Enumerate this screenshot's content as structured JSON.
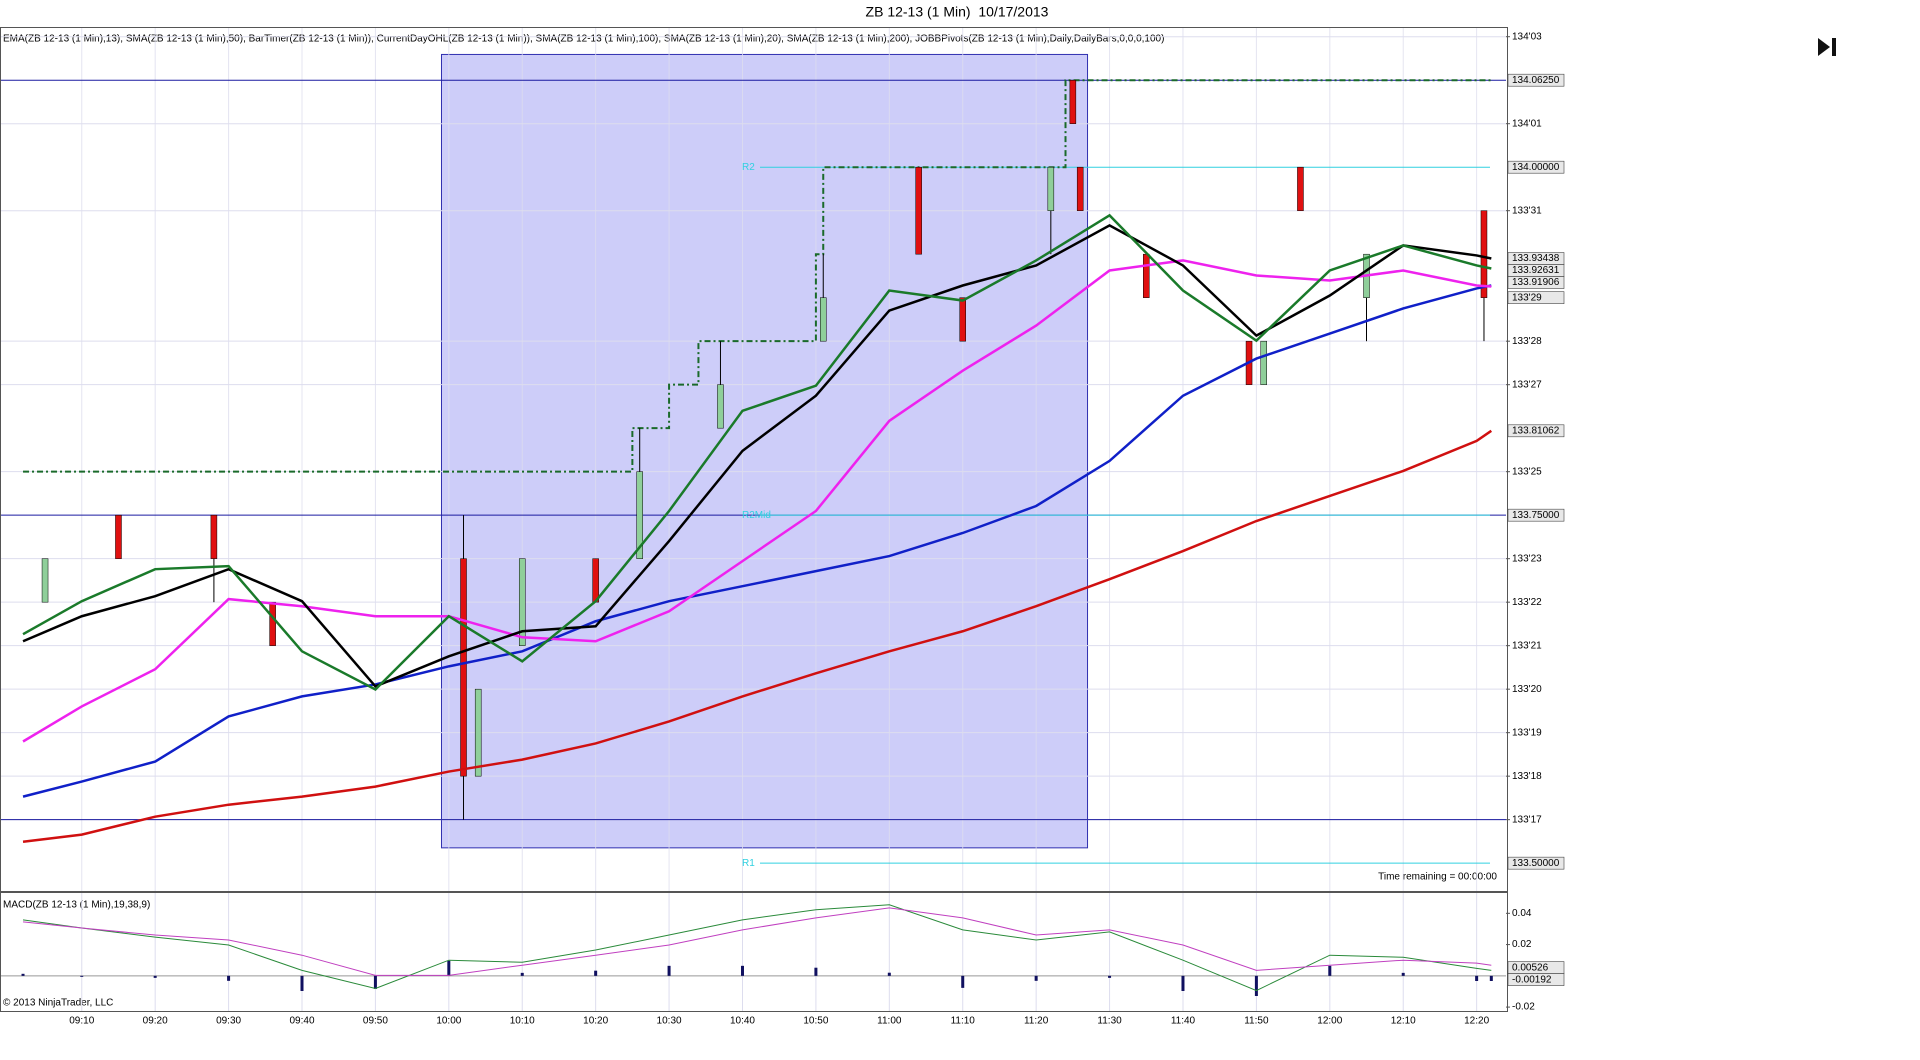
{
  "chart_data": [
    {
      "type": "candlestick",
      "title": "ZB 12-13 (1 Min)  10/17/2013",
      "subtitle": "EMA(ZB 12-13 (1 Min),13), SMA(ZB 12-13 (1 Min),50), BarTimer(ZB 12-13 (1 Min)), CurrentDayOHL(ZB 12-13 (1 Min)), SMA(ZB 12-13 (1 Min),100), SMA(ZB 12-13 (1 Min),20), SMA(ZB 12-13 (1 Min),200), JOBBPivots(ZB 12-13 (1 Min),Daily,DailyBars,0,0,0,100)",
      "annotation": "Time remaining = 00:00:00",
      "xlim": [
        "08:59",
        "12:24"
      ],
      "xticks": [
        "09:10",
        "09:20",
        "09:30",
        "09:40",
        "09:50",
        "10:00",
        "10:10",
        "10:20",
        "10:30",
        "10:40",
        "10:50",
        "11:00",
        "11:10",
        "11:20",
        "11:30",
        "11:40",
        "11:50",
        "12:00",
        "12:10",
        "12:20"
      ],
      "ylim": [
        133.48,
        134.1
      ],
      "yticks": [
        {
          "value": 134.09375,
          "label": "134'03"
        },
        {
          "value": 134.03125,
          "label": "134'01"
        },
        {
          "value": 133.96875,
          "label": "133'31"
        },
        {
          "value": 133.875,
          "label": "133'28"
        },
        {
          "value": 133.84375,
          "label": "133'27"
        },
        {
          "value": 133.78125,
          "label": "133'25"
        },
        {
          "value": 133.71875,
          "label": "133'23"
        },
        {
          "value": 133.6875,
          "label": "133'22"
        },
        {
          "value": 133.65625,
          "label": "133'21"
        },
        {
          "value": 133.625,
          "label": "133'20"
        },
        {
          "value": 133.59375,
          "label": "133'19"
        },
        {
          "value": 133.5625,
          "label": "133'18"
        },
        {
          "value": 133.53125,
          "label": "133'17"
        }
      ],
      "grid": true,
      "up_color": "#8fcf9a",
      "down_color": "#e01010",
      "bars": {
        "x": [
          "09:05",
          "09:15",
          "09:28",
          "09:36",
          "10:02",
          "10:04",
          "10:10",
          "10:20",
          "10:26",
          "10:37",
          "10:51",
          "11:04",
          "11:10",
          "11:22",
          "11:25",
          "11:26",
          "11:35",
          "11:49",
          "11:51",
          "11:56",
          "12:05",
          "12:21"
        ],
        "open": [
          133.6875,
          133.75,
          133.75,
          133.6875,
          133.71875,
          133.5625,
          133.65625,
          133.71875,
          133.71875,
          133.8125,
          133.875,
          134.0,
          133.90625,
          133.96875,
          134.0625,
          134.0,
          133.9375,
          133.875,
          133.84375,
          134.0,
          133.90625,
          133.96875
        ],
        "high": [
          133.71875,
          133.75,
          133.75,
          133.6875,
          133.75,
          133.625,
          133.71875,
          133.71875,
          133.8125,
          133.875,
          133.9375,
          134.0,
          133.90625,
          134.0,
          134.0625,
          134.0,
          133.9375,
          133.875,
          133.875,
          134.0,
          133.9375,
          133.96875
        ],
        "low": [
          133.6875,
          133.71875,
          133.6875,
          133.65625,
          133.53125,
          133.5625,
          133.65625,
          133.6875,
          133.71875,
          133.8125,
          133.875,
          133.9375,
          133.875,
          133.9375,
          134.03125,
          133.96875,
          133.90625,
          133.84375,
          133.84375,
          133.96875,
          133.875,
          133.875
        ],
        "close": [
          133.71875,
          133.71875,
          133.71875,
          133.65625,
          133.5625,
          133.625,
          133.71875,
          133.6875,
          133.78125,
          133.84375,
          133.90625,
          133.9375,
          133.875,
          134.0,
          134.03125,
          133.96875,
          133.90625,
          133.84375,
          133.875,
          133.96875,
          133.9375,
          133.90625
        ]
      },
      "x": [
        "09:02",
        "09:10",
        "09:20",
        "09:30",
        "09:40",
        "09:50",
        "10:00",
        "10:10",
        "10:20",
        "10:30",
        "10:40",
        "10:50",
        "11:00",
        "11:10",
        "11:20",
        "11:30",
        "11:40",
        "11:50",
        "12:00",
        "12:10",
        "12:20",
        "12:22"
      ],
      "series": [
        {
          "color": "#d01010",
          "values": [
            133.5154,
            133.5205,
            133.5334,
            133.542,
            133.5478,
            133.555,
            133.5658,
            133.5744,
            133.586,
            133.6018,
            133.6198,
            133.6364,
            133.6522,
            133.6666,
            133.6846,
            133.704,
            133.7242,
            133.7458,
            133.7638,
            133.7818,
            133.8034,
            133.8106
          ]
        },
        {
          "color": "#1020c8",
          "values": [
            133.5478,
            133.5586,
            133.573,
            133.6054,
            133.6198,
            133.6284,
            133.6414,
            133.6522,
            133.6738,
            133.6882,
            133.699,
            133.7098,
            133.7206,
            133.7372,
            133.7566,
            133.789,
            133.8358,
            133.8625,
            133.8805,
            133.8985,
            133.9129,
            133.915
          ]
        },
        {
          "color": "#ee22ee",
          "values": [
            133.5874,
            133.6126,
            133.6393,
            133.6897,
            133.6846,
            133.6774,
            133.6774,
            133.6623,
            133.6594,
            133.681,
            133.717,
            133.753,
            133.8178,
            133.8538,
            133.8862,
            133.9258,
            133.933,
            133.9222,
            133.9186,
            133.9258,
            133.915,
            133.9143
          ]
        },
        {
          "color": "#000000",
          "values": [
            133.6594,
            133.6774,
            133.6918,
            133.7112,
            133.6882,
            133.627,
            133.6486,
            133.6666,
            133.6702,
            133.7314,
            133.7962,
            133.8358,
            133.897,
            133.915,
            133.9294,
            133.9582,
            133.9294,
            133.879,
            133.9078,
            133.9438,
            133.9366,
            133.9344
          ]
        },
        {
          "color": "#1a7a2a",
          "values": [
            133.6645,
            133.6882,
            133.7112,
            133.7134,
            133.6522,
            133.6248,
            133.6774,
            133.645,
            133.6882,
            133.753,
            133.825,
            133.843,
            133.9114,
            133.9042,
            133.933,
            133.9654,
            133.9114,
            133.8754,
            133.9258,
            133.9438,
            133.9294,
            133.9272
          ]
        }
      ],
      "day_high": {
        "color": "#1a6a2a",
        "x": [
          "09:02",
          "10:25",
          "10:30",
          "10:34",
          "10:50",
          "10:51",
          "11:24",
          "12:22"
        ],
        "values": [
          133.78125,
          133.8125,
          133.84375,
          133.875,
          133.9375,
          134.0,
          134.0625,
          134.0625
        ]
      },
      "region": {
        "color": "#c8c8f8",
        "x": [
          "09:59",
          "11:27"
        ],
        "y": [
          133.511,
          134.081
        ]
      },
      "horizontal_lines": {
        "color": "#1a1aa0",
        "values": [
          134.0625,
          133.75,
          133.53125
        ]
      },
      "pivots": [
        {
          "name": "R2",
          "value": 134.0,
          "color": "#30d0e0"
        },
        {
          "name": "R2Mid",
          "value": 133.75,
          "color": "#30d0e0"
        },
        {
          "name": "R1",
          "value": 133.5,
          "color": "#30d0e0"
        }
      ],
      "price_markers": [
        {
          "value": 134.0625,
          "label": "134.06250"
        },
        {
          "value": 134.0,
          "label": "134.00000"
        },
        {
          "value": 133.93438,
          "label": "133.93438"
        },
        {
          "value": 133.92631,
          "label": "133.92631"
        },
        {
          "value": 133.91906,
          "label": "133.91906"
        },
        {
          "value": 133.90625,
          "label": "133'29"
        },
        {
          "value": 133.81062,
          "label": "133.81062"
        },
        {
          "value": 133.75,
          "label": "133.75000"
        },
        {
          "value": 133.5,
          "label": "133.50000"
        }
      ]
    },
    {
      "type": "line",
      "title": "MACD(ZB 12-13 (1 Min),19,38,9)",
      "ylim": [
        -0.0225,
        0.053
      ],
      "yticks": [
        0.04,
        0.02,
        -0.02
      ],
      "x": [
        "09:02",
        "09:10",
        "09:20",
        "09:30",
        "09:40",
        "09:50",
        "10:00",
        "10:10",
        "10:20",
        "10:30",
        "10:40",
        "10:50",
        "11:00",
        "11:10",
        "11:20",
        "11:30",
        "11:40",
        "11:50",
        "12:00",
        "12:10",
        "12:20",
        "12:22"
      ],
      "series": [
        {
          "color": "#2a8a3a",
          "values": [
            0.0358,
            0.0306,
            0.0248,
            0.0197,
            0.0035,
            -0.0081,
            0.01,
            0.0087,
            0.0165,
            0.0261,
            0.0358,
            0.0423,
            0.0455,
            0.0294,
            0.0229,
            0.0281,
            0.01,
            -0.0094,
            0.0132,
            0.0119,
            0.0048,
            0.0035
          ]
        },
        {
          "color": "#c040c0",
          "values": [
            0.0345,
            0.0306,
            0.0261,
            0.0229,
            0.0132,
            0.0003,
            0.0003,
            0.0068,
            0.0132,
            0.0197,
            0.0294,
            0.0371,
            0.0435,
            0.0371,
            0.0261,
            0.0294,
            0.0197,
            0.0035,
            0.0068,
            0.01,
            0.0081,
            0.0068
          ]
        }
      ],
      "histogram": {
        "color": "#101060",
        "values": [
          0.0013,
          0,
          -0.0013,
          -0.0032,
          -0.0097,
          -0.0084,
          0.0097,
          0.0019,
          0.0033,
          0.0064,
          0.0064,
          0.0052,
          0.002,
          -0.0077,
          -0.0032,
          -0.0013,
          -0.0097,
          -0.0129,
          0.0064,
          0.0019,
          -0.0033,
          -0.0033
        ]
      },
      "price_markers": [
        {
          "value": 0.00526,
          "label": "0.00526"
        },
        {
          "value": -0.00192,
          "label": "-0.00192"
        }
      ]
    }
  ],
  "copyright": "© 2013 NinjaTrader, LLC"
}
